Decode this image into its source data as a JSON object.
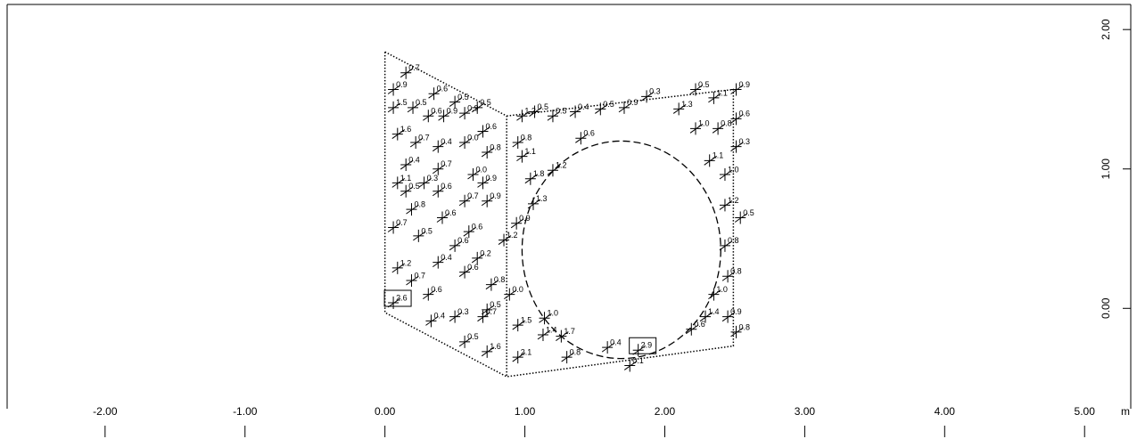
{
  "chart_data": {
    "type": "scatter",
    "xlim": [
      -2.7,
      5.33
    ],
    "ylim": [
      -0.72,
      2.18
    ],
    "xticks": [
      {
        "value": -2,
        "label": "-2.00"
      },
      {
        "value": -1,
        "label": "-1.00"
      },
      {
        "value": 0,
        "label": "0.00"
      },
      {
        "value": 1,
        "label": "1.00"
      },
      {
        "value": 2,
        "label": "2.00"
      },
      {
        "value": 3,
        "label": "3.00"
      },
      {
        "value": 4,
        "label": "4.00"
      },
      {
        "value": 5,
        "label": "5.00"
      }
    ],
    "yticks": [
      {
        "value": 0,
        "label": "0.00"
      },
      {
        "value": 1,
        "label": "1.00"
      },
      {
        "value": 2,
        "label": "2.00"
      }
    ],
    "x_unit": "m",
    "outlines": [
      {
        "x": [
          0,
          0.87,
          0.87,
          0,
          0
        ],
        "y": [
          1.84,
          1.38,
          -0.49,
          -0.03,
          1.84
        ]
      },
      {
        "x": [
          0.87,
          2.49,
          2.49,
          0.87
        ],
        "y": [
          1.38,
          1.57,
          -0.27,
          -0.49
        ]
      }
    ],
    "ellipse": {
      "cx": 1.69,
      "cy": 0.42,
      "rx": 0.71,
      "ry": 0.78
    },
    "points": {
      "x": [
        0.15,
        0.06,
        0.35,
        0.5,
        0.66,
        0.06,
        0.2,
        0.31,
        0.42,
        0.57,
        0.7,
        0.09,
        0.22,
        0.38,
        0.57,
        0.73,
        0.15,
        0.38,
        0.63,
        0.09,
        0.28,
        0.7,
        0.15,
        0.38,
        0.57,
        0.73,
        0.19,
        0.41,
        0.6,
        0.06,
        0.24,
        0.5,
        0.66,
        0.09,
        0.19,
        0.38,
        0.57,
        0.76,
        0.06,
        0.31,
        0.5,
        0.7,
        0.33,
        0.57,
        0.73,
        0.73,
        0.98,
        1.07,
        1.2,
        1.36,
        1.54,
        1.71,
        1.87,
        2.1,
        2.22,
        2.35,
        2.51,
        2.51,
        2.51,
        2.38,
        2.22,
        2.32,
        2.43,
        2.43,
        2.54,
        2.43,
        2.45,
        2.35,
        2.29,
        2.45,
        2.51,
        2.19,
        0.95,
        0.98,
        1.04,
        1.2,
        1.06,
        0.94,
        0.85,
        0.89,
        0.95,
        1.14,
        1.13,
        1.26,
        1.3,
        1.59,
        1.81,
        1.75,
        0.95,
        1.4
      ],
      "y": [
        1.69,
        1.57,
        1.54,
        1.48,
        1.44,
        1.44,
        1.44,
        1.38,
        1.38,
        1.4,
        1.27,
        1.25,
        1.19,
        1.16,
        1.19,
        1.12,
        1.03,
        1.0,
        0.96,
        0.9,
        0.9,
        0.9,
        0.84,
        0.84,
        0.77,
        0.77,
        0.71,
        0.65,
        0.55,
        0.58,
        0.52,
        0.45,
        0.36,
        0.29,
        0.2,
        0.33,
        0.26,
        0.17,
        0.04,
        0.1,
        -0.06,
        -0.06,
        -0.09,
        -0.24,
        -0.31,
        -0.01,
        1.38,
        1.41,
        1.38,
        1.41,
        1.43,
        1.44,
        1.52,
        1.43,
        1.57,
        1.51,
        1.57,
        1.36,
        1.16,
        1.29,
        1.29,
        1.06,
        0.96,
        0.74,
        0.65,
        0.45,
        0.23,
        0.1,
        -0.06,
        -0.06,
        -0.17,
        -0.15,
        1.19,
        1.09,
        0.93,
        0.99,
        0.75,
        0.61,
        0.49,
        0.1,
        -0.12,
        -0.07,
        -0.19,
        -0.2,
        -0.35,
        -0.28,
        -0.3,
        -0.41,
        -0.35,
        1.22
      ],
      "labels": [
        "0.7",
        "0.9",
        "0.6",
        "0.5",
        "0.5",
        "1.5",
        "0.5",
        "0.6",
        "0.9",
        "0.9",
        "0.6",
        "1.6",
        "0.7",
        "0.4",
        "0.0",
        "0.8",
        "0.4",
        "0.7",
        "0.0",
        "1.1",
        "0.3",
        "0.9",
        "0.5",
        "0.6",
        "0.7",
        "0.9",
        "0.8",
        "0.6",
        "0.6",
        "0.7",
        "0.5",
        "0.6",
        "0.2",
        "1.2",
        "0.7",
        "0.4",
        "0.6",
        "0.8",
        "2.6",
        "0.6",
        "0.3",
        "0.7",
        "0.4",
        "0.5",
        "1.6",
        "0.5",
        "1.2",
        "0.5",
        "0.5",
        "0.4",
        "0.5",
        "0.9",
        "0.3",
        "1.3",
        "0.5",
        "1.1",
        "0.9",
        "0.6",
        "0.3",
        "0.8",
        "1.0",
        "1.1",
        "1.0",
        "1.2",
        "0.5",
        "0.8",
        "0.8",
        "1.0",
        "1.4",
        "0.9",
        "0.8",
        "0.6",
        "0.8",
        "1.1",
        "1.8",
        "1.2",
        "1.3",
        "0.9",
        "1.2",
        "0.0",
        "1.5",
        "1.0",
        "1.4",
        "1.7",
        "0.8",
        "0.4",
        "2.9",
        "0.1",
        "2.1",
        "0.6"
      ],
      "boxed": [
        38,
        86
      ]
    }
  }
}
